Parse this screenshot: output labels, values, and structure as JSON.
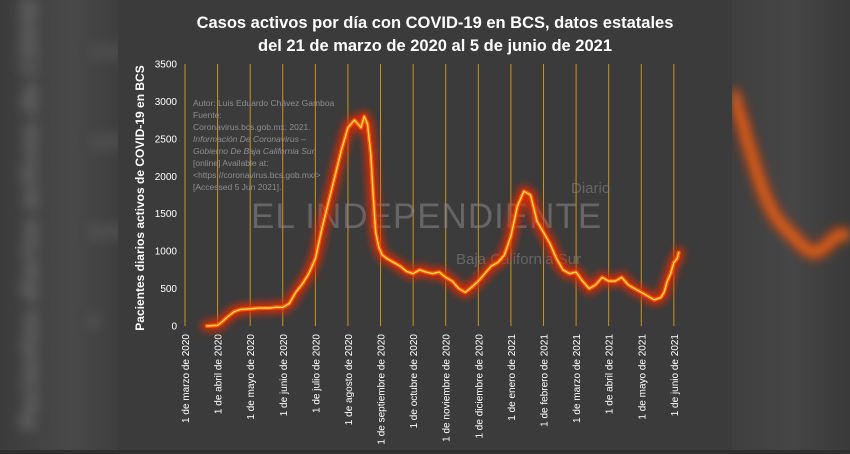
{
  "side_decor": {
    "left_text": "Pacientes diarios activos de COVID",
    "left_numbers": [
      "1500",
      "1000",
      "500",
      "0"
    ]
  },
  "colors": {
    "background": "#3b3b3b",
    "gridline": "#c8961e",
    "line_core": "#ffd24a",
    "line_mid": "#ff5a0a",
    "line_glow": "#e62a00",
    "title": "#ffffff",
    "axis_text": "#ffffff",
    "watermark": "#8a8a8a"
  },
  "source_note": [
    "Autor: Luis Eduardo Chávez Gamboa",
    "Fuente:",
    "Coronavirus.bcs.gob.mx. 2021.",
    "Información De Coronavirus –",
    "Gobierno De Baja California Sur.",
    "[online] Available at:",
    "<https://coronavirus.bcs.gob.mx/>",
    "[Accessed 5 Jun 2021]."
  ],
  "watermark": {
    "small": "Diario",
    "main": "EL INDEPENDIENTE",
    "sub": "Baja California Sur"
  },
  "chart_data": {
    "type": "line",
    "title": "Casos activos por día con COVID-19 en BCS, datos estatales",
    "subtitle": "del 21 de marzo de 2020 al 5 de junio de 2021",
    "xlabel": "",
    "ylabel": "Pacientes diarios activos de COVID-19 en BCS",
    "ylim": [
      0,
      3500
    ],
    "yticks": [
      0,
      500,
      1000,
      1500,
      2000,
      2500,
      3000,
      3500
    ],
    "xlim": [
      0,
      15.25
    ],
    "xticks": [
      "1 de marzo de 2020",
      "1 de abril de 2020",
      "1 de mayo de 2020",
      "1 de junio de 2020",
      "1 de julio de 2020",
      "1 de agosto de 2020",
      "1 de septiembre de 2020",
      "1 de octubre de 2020",
      "1 de noviembre de 2020",
      "1 de diciembre de 2020",
      "1 de enero de 2021",
      "1 de febrero de 2021",
      "1 de marzo de 2021",
      "1 de abril de 2021",
      "1 de mayo de 2021",
      "1 de junio de 2021"
    ],
    "grid": "vertical",
    "series": [
      {
        "name": "Casos activos",
        "x": [
          0.67,
          0.85,
          1.0,
          1.15,
          1.3,
          1.5,
          1.7,
          2.0,
          2.3,
          2.6,
          2.8,
          3.0,
          3.2,
          3.4,
          3.6,
          3.8,
          4.0,
          4.2,
          4.4,
          4.6,
          4.8,
          5.0,
          5.2,
          5.4,
          5.5,
          5.6,
          5.7,
          5.78,
          5.85,
          5.95,
          6.05,
          6.2,
          6.4,
          6.6,
          6.8,
          7.0,
          7.2,
          7.4,
          7.6,
          7.8,
          8.0,
          8.2,
          8.4,
          8.6,
          8.8,
          9.0,
          9.2,
          9.4,
          9.6,
          9.8,
          10.0,
          10.2,
          10.4,
          10.6,
          10.8,
          11.0,
          11.2,
          11.4,
          11.6,
          11.8,
          12.0,
          12.2,
          12.4,
          12.6,
          12.8,
          13.0,
          13.2,
          13.4,
          13.6,
          13.8,
          14.0,
          14.2,
          14.4,
          14.6,
          14.7,
          14.8,
          14.9,
          15.0,
          15.1,
          15.15
        ],
        "values": [
          0,
          5,
          10,
          60,
          120,
          190,
          220,
          230,
          240,
          240,
          250,
          250,
          300,
          450,
          560,
          700,
          900,
          1300,
          1650,
          2000,
          2350,
          2650,
          2750,
          2650,
          2800,
          2700,
          2300,
          1700,
          1250,
          1050,
          950,
          900,
          850,
          800,
          730,
          700,
          750,
          720,
          700,
          720,
          650,
          600,
          500,
          450,
          520,
          600,
          700,
          800,
          850,
          950,
          1200,
          1600,
          1800,
          1750,
          1400,
          1250,
          1100,
          900,
          750,
          700,
          720,
          600,
          500,
          550,
          650,
          600,
          600,
          650,
          550,
          500,
          450,
          400,
          350,
          380,
          450,
          600,
          700,
          850,
          900,
          980
        ]
      }
    ]
  }
}
